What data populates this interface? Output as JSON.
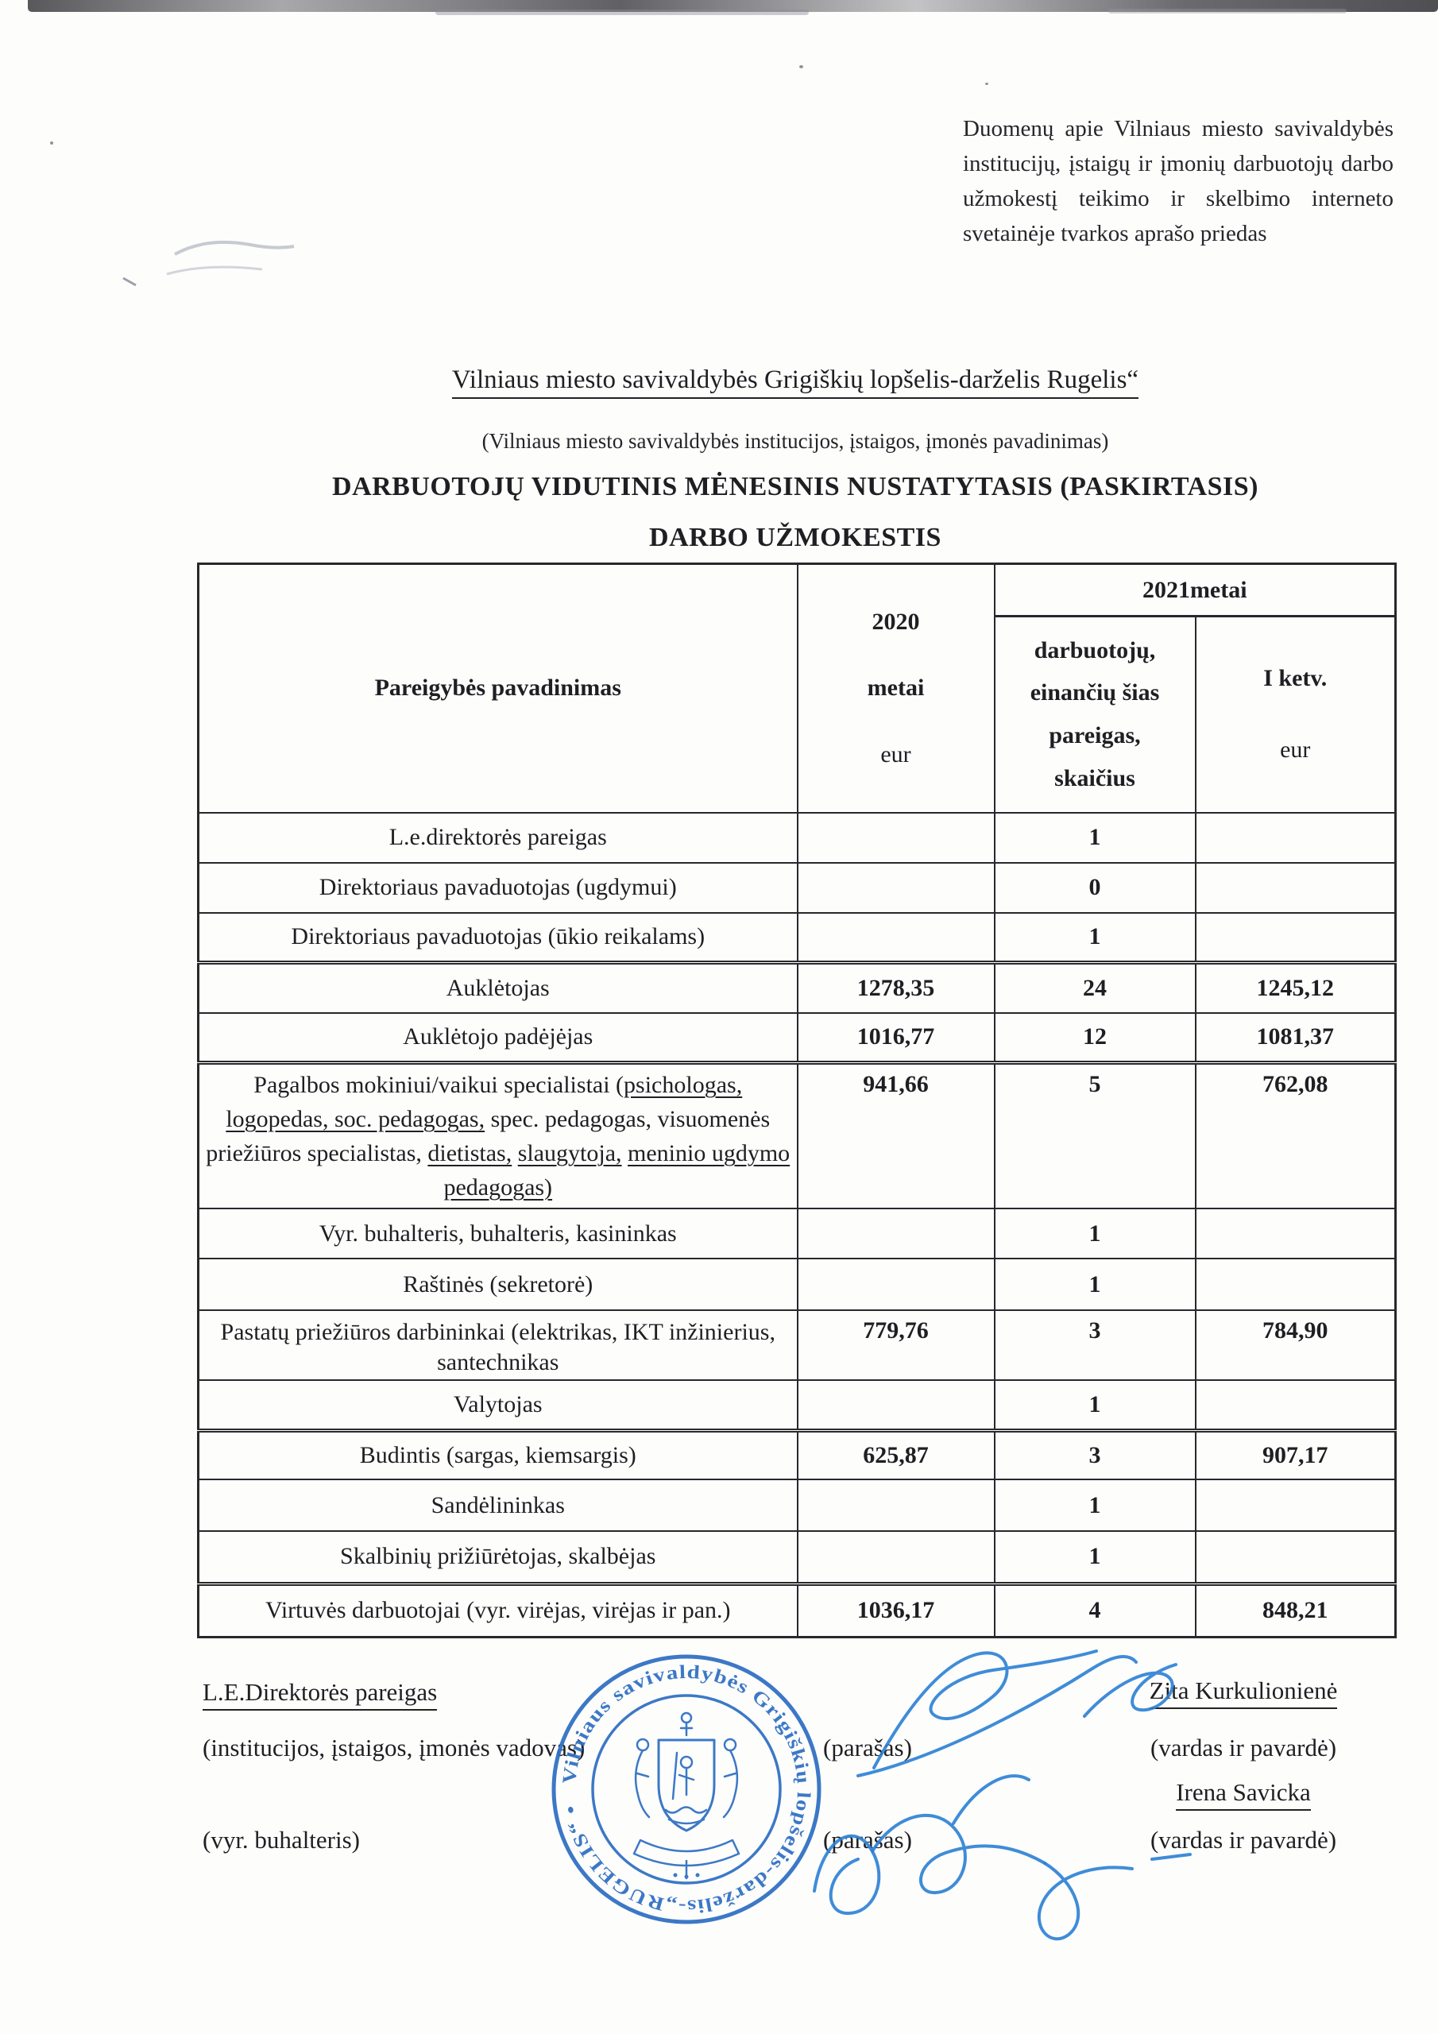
{
  "colors": {
    "ink": "#1f1f23",
    "stamp": "#2e6fc2",
    "signature": "#2a7fd4"
  },
  "page": {
    "corner_note": "Duomenų apie Vilniaus miesto savivaldybės institucijų, įstaigų ir įmonių darbuotojų darbo užmokestį teikimo ir skelbimo interneto svetainėje tvarkos aprašo priedas",
    "org_title": "Vilniaus miesto savivaldybės Grigiškių lopšelis-darželis Rugelis“",
    "org_subtitle": "(Vilniaus miesto savivaldybės institucijos, įstaigos, įmonės pavadinimas)",
    "heading_line1": "DARBUOTOJŲ VIDUTINIS MĖNESINIS NUSTATYTASIS (PASKIRTASIS)",
    "heading_line2": "DARBO UŽMOKESTIS"
  },
  "table": {
    "header": {
      "col_position": "Pareigybės pavadinimas",
      "col_2020_line1": "2020",
      "col_2020_line2": "metai",
      "col_2020_line3": "eur",
      "col_2021_group": "2021metai",
      "col_count_line1": "darbuotojų,",
      "col_count_line2": "einančių šias",
      "col_count_line3": "pareigas,",
      "col_count_line4": "skaičius",
      "col_q1_line1": "I ketv.",
      "col_q1_line2": "eur"
    },
    "rows": [
      {
        "title": "L.e.direktorės pareigas",
        "eur_2020": "",
        "count_2021": "1",
        "eur_q1_2021": ""
      },
      {
        "title": "Direktoriaus pavaduotojas (ugdymui)",
        "eur_2020": "",
        "count_2021": "0",
        "eur_q1_2021": ""
      },
      {
        "title": "Direktoriaus pavaduotojas (ūkio reikalams)",
        "eur_2020": "",
        "count_2021": "1",
        "eur_q1_2021": ""
      },
      {
        "title": "Auklėtojas",
        "eur_2020": "1278,35",
        "count_2021": "24",
        "eur_q1_2021": "1245,12"
      },
      {
        "title": "Auklėtojo padėjėjas",
        "eur_2020": "1016,77",
        "count_2021": "12",
        "eur_q1_2021": "1081,37"
      },
      {
        "title_segments": [
          {
            "text": "Pagalbos mokiniui/vaikui specialistai (",
            "u": false
          },
          {
            "text": "psichologas,",
            "u": true
          },
          {
            "text": " ",
            "u": false
          },
          {
            "text": "logopedas, soc. pedagogas,",
            "u": true
          },
          {
            "text": " spec. pedagogas, visuomenės priežiūros specialistas, ",
            "u": false
          },
          {
            "text": "dietistas,",
            "u": true
          },
          {
            "text": " ",
            "u": false
          },
          {
            "text": "slaugytoja,",
            "u": true
          },
          {
            "text": "  ",
            "u": false
          },
          {
            "text": "meninio ugdymo pedagogas)",
            "u": true
          }
        ],
        "eur_2020": "941,66",
        "count_2021": "5",
        "eur_q1_2021": "762,08"
      },
      {
        "title": "Vyr. buhalteris, buhalteris, kasininkas",
        "eur_2020": "",
        "count_2021": "1",
        "eur_q1_2021": ""
      },
      {
        "title": "Raštinės (sekretorė)",
        "eur_2020": "",
        "count_2021": "1",
        "eur_q1_2021": ""
      },
      {
        "title": "Pastatų priežiūros darbininkai (elektrikas, IKT inžinierius, santechnikas",
        "eur_2020": "779,76",
        "count_2021": "3",
        "eur_q1_2021": "784,90"
      },
      {
        "title": "Valytojas",
        "eur_2020": "",
        "count_2021": "1",
        "eur_q1_2021": ""
      },
      {
        "title": "Budintis (sargas, kiemsargis)",
        "eur_2020": "625,87",
        "count_2021": "3",
        "eur_q1_2021": "907,17"
      },
      {
        "title": "Sandėlininkas",
        "eur_2020": "",
        "count_2021": "1",
        "eur_q1_2021": ""
      },
      {
        "title": "Skalbinių prižiūrėtojas, skalbėjas",
        "eur_2020": "",
        "count_2021": "1",
        "eur_q1_2021": ""
      },
      {
        "title": "Virtuvės darbuotojai (vyr. virėjas, virėjas ir pan.)",
        "eur_2020": "1036,17",
        "count_2021": "4",
        "eur_q1_2021": "848,21"
      }
    ]
  },
  "signatures": {
    "left_role1": "L.E.Direktorės pareigas",
    "left_role1_sub": "(institucijos, įstaigos, įmonės vadovas)",
    "left_role2": "(vyr. buhalteris)",
    "signature_label1": "(parašas)",
    "signature_label2": "(parašas)",
    "name1": "Zita Kurkulionienė",
    "name1_sub": "(vardas ir pavardė)",
    "name2": "Irena Savicka",
    "name2_sub": "(vardas ir pavardė)"
  },
  "stamp": {
    "ring_text": "Vilniaus savivaldybės Grigiškių lopšelis-darželis-„RUGELIS“ •"
  }
}
